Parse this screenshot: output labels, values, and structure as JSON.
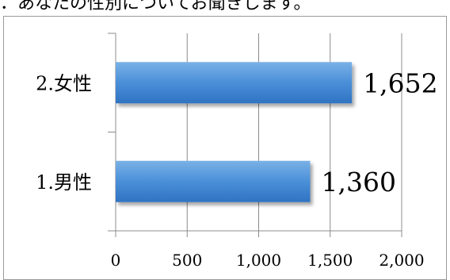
{
  "title_text": "．あなたの性別についてお聞きします。",
  "colors": {
    "bar_top": "#7ab1e6",
    "bar_mid": "#4a8fd8",
    "bar_bottom": "#2f73c2",
    "gridline": "#8c8c8c",
    "axis": "#8c8c8c",
    "frame": "#9a9a9a"
  },
  "chart_data": {
    "type": "bar",
    "orientation": "horizontal",
    "title": "",
    "xlabel": "",
    "ylabel": "",
    "categories": [
      "1.男性",
      "2.女性"
    ],
    "values": [
      1360,
      1652
    ],
    "value_labels": [
      "1,360",
      "1,652"
    ],
    "xlim": [
      0,
      2000
    ],
    "ticks": [
      0,
      500,
      1000,
      1500,
      2000
    ],
    "tick_labels": [
      "0",
      "500",
      "1,000",
      "1,500",
      "2,000"
    ],
    "grid": true,
    "legend": "none"
  }
}
